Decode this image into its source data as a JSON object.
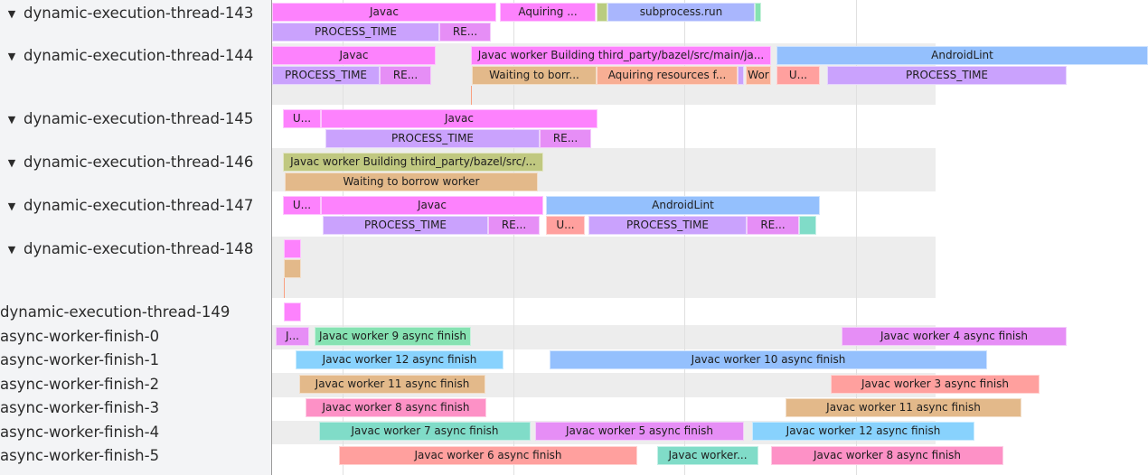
{
  "colors": {
    "pink": "#fd82fd",
    "violet": "#caa2fd",
    "magenta": "#e68ef6",
    "olive": "#b9cc80",
    "lavender": "#a9b6fd",
    "mint": "#86e2b2",
    "blue": "#94c0fd",
    "tan": "#e3b98a",
    "salmon": "#f8ae94",
    "rose": "#ffa09e",
    "teal": "#80dcc8",
    "sky": "#88d2fd",
    "hotpink": "#fd91c6",
    "khaki": "#c0c880",
    "track_alt_bg": "#ededed",
    "panel_bg": "#f3f4f6"
  },
  "tracks": [
    {
      "label": "dynamic-execution-thread-143",
      "expanded": true,
      "slices": [
        {
          "label": "Javac",
          "color": "pink"
        },
        {
          "label": "Aquiring ...",
          "color": "pink"
        },
        {
          "label": "",
          "color": "olive"
        },
        {
          "label": "subprocess.run",
          "color": "lavender"
        },
        {
          "label": "",
          "color": "mint"
        },
        {
          "label": "PROCESS_TIME",
          "color": "violet"
        },
        {
          "label": "RE...",
          "color": "magenta"
        }
      ]
    },
    {
      "label": "dynamic-execution-thread-144",
      "expanded": true,
      "slices": [
        {
          "label": "Javac",
          "color": "pink"
        },
        {
          "label": "Javac worker Building third_party/bazel/src/main/ja...",
          "color": "pink"
        },
        {
          "label": "AndroidLint",
          "color": "blue"
        },
        {
          "label": "PROCESS_TIME",
          "color": "violet"
        },
        {
          "label": "RE...",
          "color": "magenta"
        },
        {
          "label": "Waiting to borr...",
          "color": "tan"
        },
        {
          "label": "Aquiring resources f...",
          "color": "salmon"
        },
        {
          "label": "",
          "color": "violet"
        },
        {
          "label": "Wor",
          "color": "salmon"
        },
        {
          "label": "U...",
          "color": "rose"
        },
        {
          "label": "PROCESS_TIME",
          "color": "violet"
        }
      ]
    },
    {
      "label": "dynamic-execution-thread-145",
      "expanded": true,
      "slices": [
        {
          "label": "U...",
          "color": "pink"
        },
        {
          "label": "Javac",
          "color": "pink"
        },
        {
          "label": "PROCESS_TIME",
          "color": "violet"
        },
        {
          "label": "RE...",
          "color": "magenta"
        }
      ]
    },
    {
      "label": "dynamic-execution-thread-146",
      "expanded": true,
      "slices": [
        {
          "label": "Javac worker Building third_party/bazel/src/...",
          "color": "khaki"
        },
        {
          "label": "Waiting to borrow worker",
          "color": "tan"
        }
      ]
    },
    {
      "label": "dynamic-execution-thread-147",
      "expanded": true,
      "slices": [
        {
          "label": "U...",
          "color": "pink"
        },
        {
          "label": "Javac",
          "color": "pink"
        },
        {
          "label": "AndroidLint",
          "color": "blue"
        },
        {
          "label": "PROCESS_TIME",
          "color": "violet"
        },
        {
          "label": "RE...",
          "color": "magenta"
        },
        {
          "label": "U...",
          "color": "rose"
        },
        {
          "label": "PROCESS_TIME",
          "color": "violet"
        },
        {
          "label": "RE...",
          "color": "magenta"
        },
        {
          "label": "",
          "color": "teal"
        }
      ]
    },
    {
      "label": "dynamic-execution-thread-148",
      "expanded": true,
      "slices": [
        {
          "label": "",
          "color": "pink"
        },
        {
          "label": "",
          "color": "tan"
        }
      ]
    },
    {
      "label": "dynamic-execution-thread-149",
      "expanded": false,
      "slices": [
        {
          "label": "",
          "color": "pink"
        }
      ]
    },
    {
      "label": "async-worker-finish-0",
      "expanded": false,
      "slices": [
        {
          "label": "J...",
          "color": "magenta"
        },
        {
          "label": "Javac worker 9 async finish",
          "color": "mint"
        },
        {
          "label": "Javac worker 4 async finish",
          "color": "magenta"
        }
      ]
    },
    {
      "label": "async-worker-finish-1",
      "expanded": false,
      "slices": [
        {
          "label": "Javac worker 12 async finish",
          "color": "sky"
        },
        {
          "label": "Javac worker 10 async finish",
          "color": "blue"
        }
      ]
    },
    {
      "label": "async-worker-finish-2",
      "expanded": false,
      "slices": [
        {
          "label": "Javac worker 11 async finish",
          "color": "tan"
        },
        {
          "label": "Javac worker 3 async finish",
          "color": "rose"
        }
      ]
    },
    {
      "label": "async-worker-finish-3",
      "expanded": false,
      "slices": [
        {
          "label": "Javac worker 8 async finish",
          "color": "hotpink"
        },
        {
          "label": "Javac worker 11 async finish",
          "color": "tan"
        }
      ]
    },
    {
      "label": "async-worker-finish-4",
      "expanded": false,
      "slices": [
        {
          "label": "Javac worker 7 async finish",
          "color": "teal"
        },
        {
          "label": "Javac worker 5 async finish",
          "color": "magenta"
        },
        {
          "label": "Javac worker 12 async finish",
          "color": "sky"
        }
      ]
    },
    {
      "label": "async-worker-finish-5",
      "expanded": false,
      "slices": [
        {
          "label": "Javac worker 6 async finish",
          "color": "rose"
        },
        {
          "label": "Javac worker...",
          "color": "teal"
        },
        {
          "label": "Javac worker 8 async finish",
          "color": "hotpink"
        }
      ]
    }
  ],
  "expand_icon": "triangle-down-icon"
}
